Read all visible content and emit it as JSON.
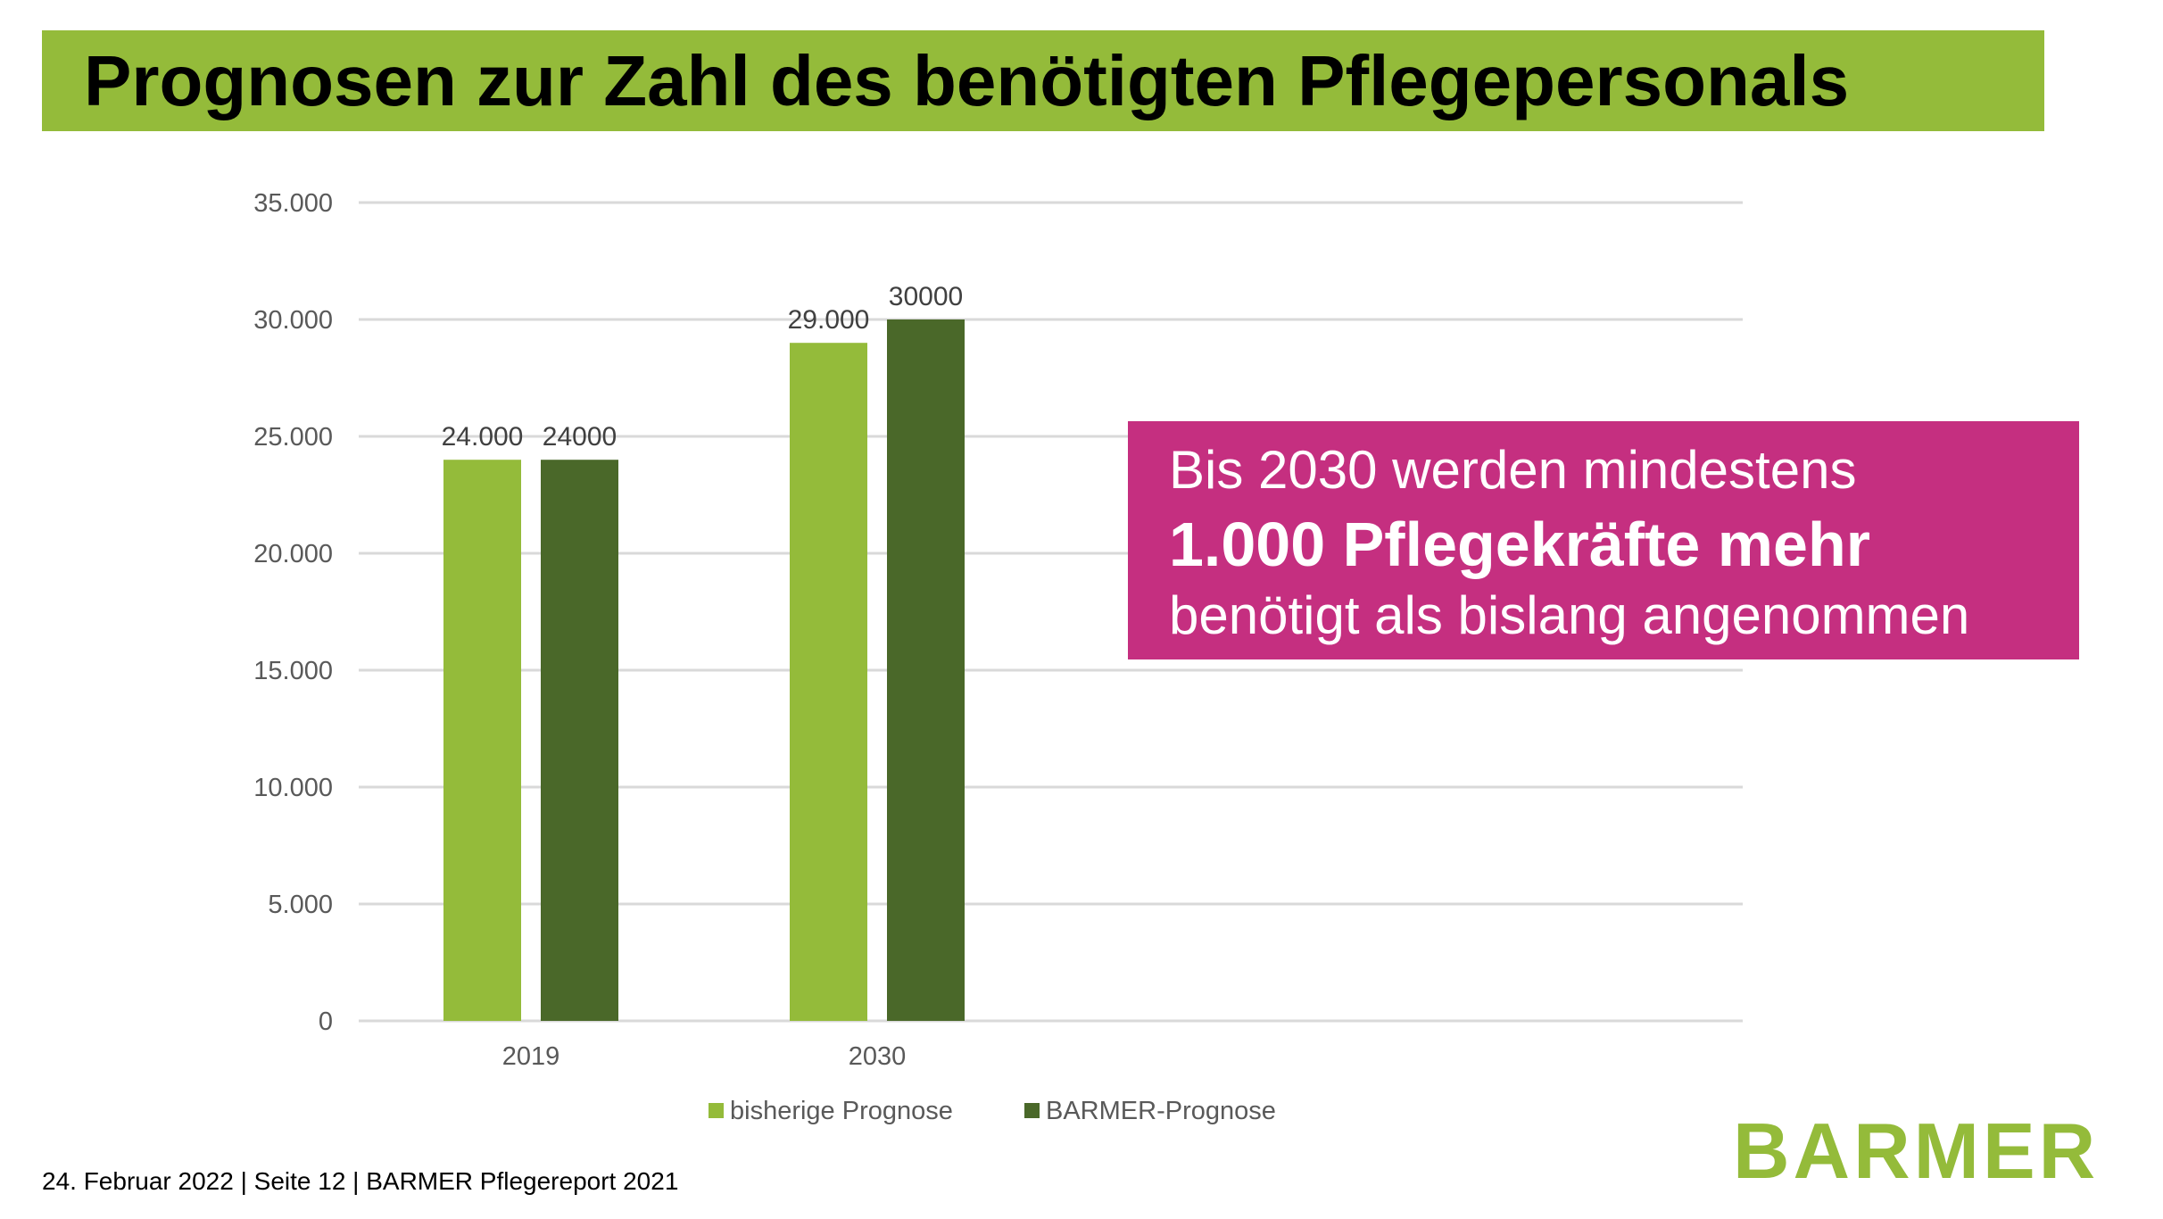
{
  "title": "Prognosen zur Zahl des benötigten Pflegepersonals",
  "callout": {
    "line1": "Bis 2030 werden mindestens",
    "line2": "1.000 Pflegekräfte mehr",
    "line3": "benötigt als bislang angenommen"
  },
  "footer": "24. Februar 2022 | Seite 12 | BARMER Pflegereport 2021",
  "logo": "BARMER",
  "colors": {
    "light": "#94bb3a",
    "dark": "#4a6829",
    "callout": "#c52f80"
  },
  "chart_data": {
    "type": "bar",
    "title": "",
    "xlabel": "",
    "ylabel": "",
    "categories": [
      "2019",
      "2030"
    ],
    "series": [
      {
        "name": "bisherige Prognose",
        "values": [
          24000,
          29000
        ],
        "labels": [
          "24.000",
          "29.000"
        ],
        "color": "#94bb3a"
      },
      {
        "name": "BARMER-Prognose",
        "values": [
          24000,
          30000
        ],
        "labels": [
          "24000",
          "30000"
        ],
        "color": "#4a6829"
      }
    ],
    "ylim": [
      0,
      35000
    ],
    "yticks": [
      0,
      5000,
      10000,
      15000,
      20000,
      25000,
      30000,
      35000
    ],
    "ytick_labels": [
      "0",
      "5.000",
      "10.000",
      "15.000",
      "20.000",
      "25.000",
      "30.000",
      "35.000"
    ],
    "grid": true,
    "legend": "bottom"
  }
}
